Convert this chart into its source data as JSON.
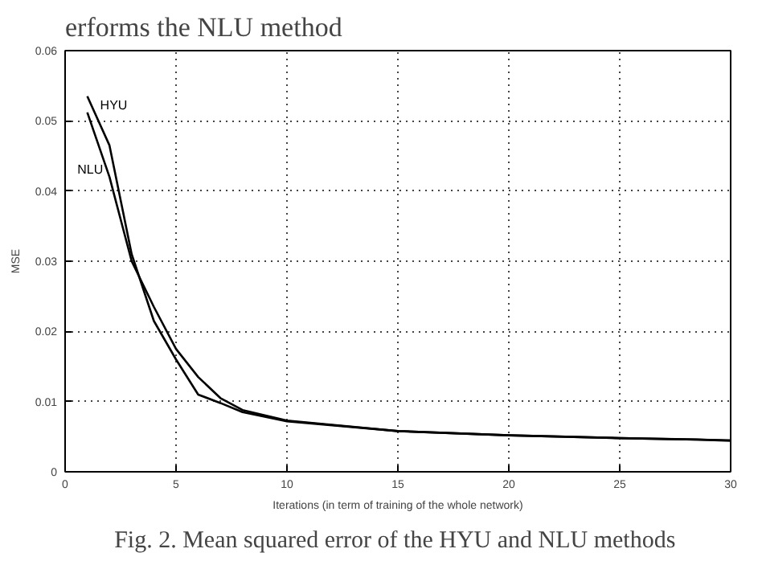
{
  "chart_data": {
    "type": "line",
    "xlabel": "Iterations (in term of training of the whole network)",
    "ylabel": "MSE",
    "annotations": [
      "erforms the NLU method",
      "Fig. 2.  Mean squared error of the HYU and NLU methods"
    ],
    "xlim": [
      0,
      30
    ],
    "ylim": [
      0,
      0.06
    ],
    "xticks": [
      0,
      5,
      10,
      15,
      20,
      25,
      30
    ],
    "yticks": [
      0,
      0.01,
      0.02,
      0.03,
      0.04,
      0.05,
      0.06
    ],
    "grid": true,
    "line_style": "solid",
    "series": [
      {
        "name": "HYU",
        "color": "#000000",
        "x": [
          1,
          2,
          3,
          4,
          5,
          6,
          7,
          8,
          10,
          15,
          20,
          25,
          28.5,
          30
        ],
        "values": [
          0.0535,
          0.0465,
          0.031,
          0.0215,
          0.016,
          0.011,
          0.0098,
          0.0085,
          0.0072,
          0.0058,
          0.0052,
          0.0048,
          0.0046,
          0.0044
        ]
      },
      {
        "name": "NLU",
        "color": "#000000",
        "x": [
          1,
          2,
          3,
          4,
          5,
          6,
          7,
          8,
          10,
          15,
          20,
          25,
          30
        ],
        "values": [
          0.0512,
          0.042,
          0.03,
          0.0235,
          0.0175,
          0.0135,
          0.0105,
          0.0088,
          0.0073,
          0.0058,
          0.0052,
          0.0048,
          0.0045
        ]
      }
    ]
  }
}
